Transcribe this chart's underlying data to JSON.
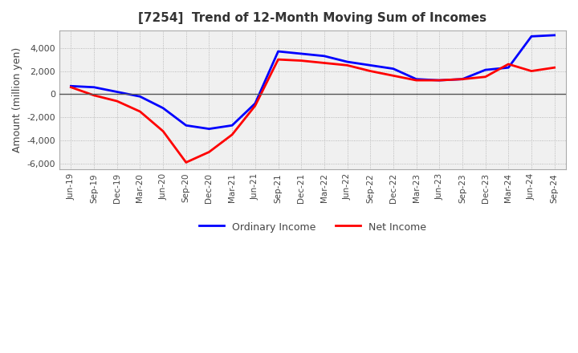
{
  "title": "[7254]  Trend of 12-Month Moving Sum of Incomes",
  "ylabel": "Amount (million yen)",
  "legend": [
    "Ordinary Income",
    "Net Income"
  ],
  "line_colors": [
    "#0000ff",
    "#ff0000"
  ],
  "background_color": "#ffffff",
  "plot_bg_color": "#f0f0f0",
  "ylim": [
    -6500,
    5500
  ],
  "yticks": [
    -6000,
    -4000,
    -2000,
    0,
    2000,
    4000
  ],
  "x_labels": [
    "Jun-19",
    "Sep-19",
    "Dec-19",
    "Mar-20",
    "Jun-20",
    "Sep-20",
    "Dec-20",
    "Mar-21",
    "Jun-21",
    "Sep-21",
    "Dec-21",
    "Mar-22",
    "Jun-22",
    "Sep-22",
    "Dec-22",
    "Mar-23",
    "Jun-23",
    "Sep-23",
    "Dec-23",
    "Mar-24",
    "Jun-24",
    "Sep-24"
  ],
  "ordinary_income": [
    700,
    600,
    200,
    -200,
    -1200,
    -2700,
    -3000,
    -2700,
    -800,
    3700,
    3500,
    3300,
    2800,
    2500,
    2200,
    1300,
    1200,
    1300,
    2100,
    2300,
    5000,
    5100
  ],
  "net_income": [
    600,
    -100,
    -600,
    -1500,
    -3200,
    -5900,
    -5000,
    -3500,
    -1000,
    3000,
    2900,
    2700,
    2500,
    2000,
    1600,
    1200,
    1200,
    1300,
    1500,
    2600,
    2000,
    2300
  ]
}
